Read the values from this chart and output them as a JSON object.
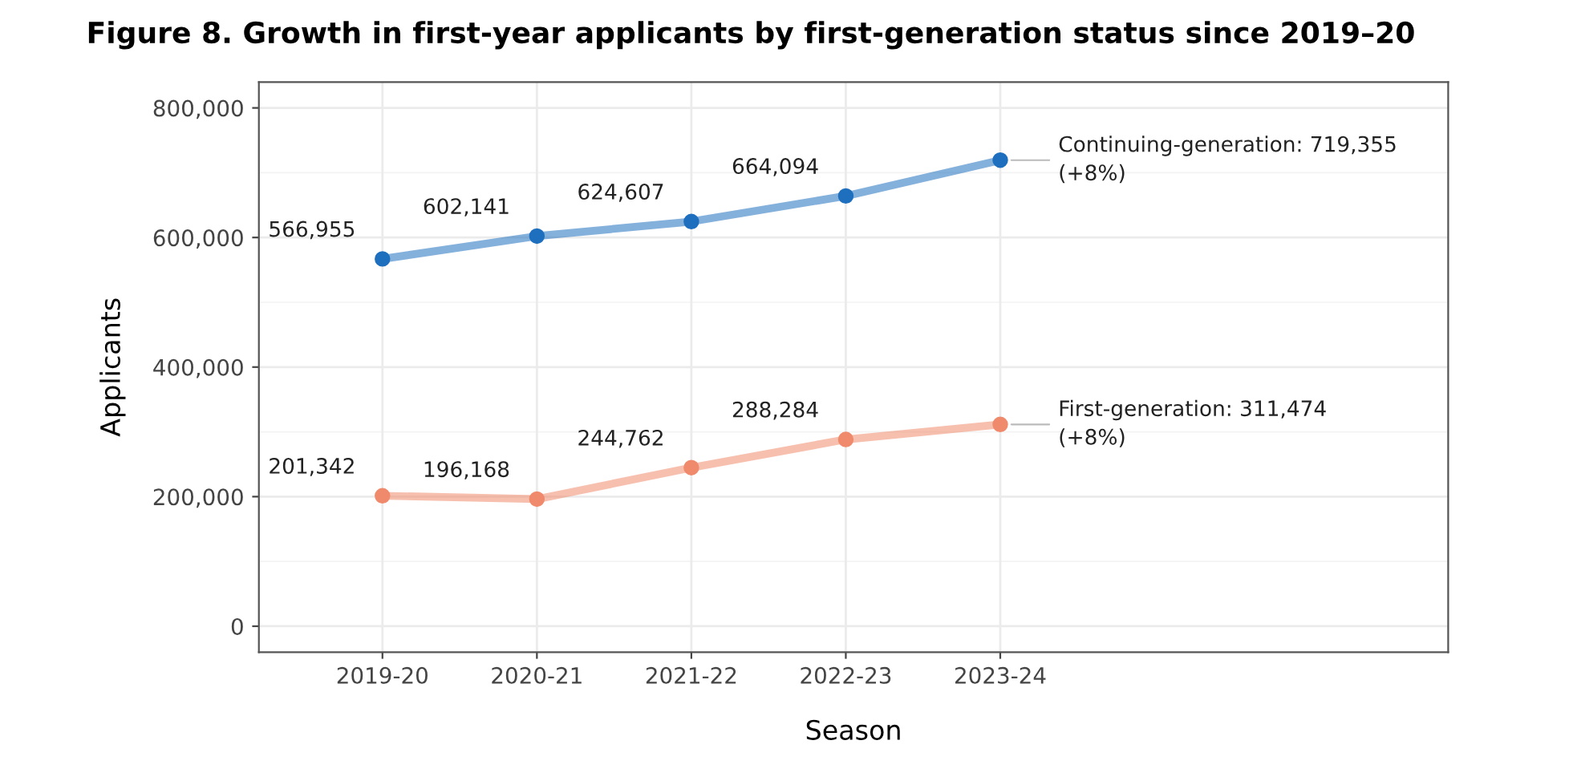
{
  "chart_data": {
    "type": "line",
    "title": "Figure 8. Growth in first-year applicants by first-generation status since 2019–20",
    "xlabel": "Season",
    "ylabel": "Applicants",
    "categories": [
      "2019-20",
      "2020-21",
      "2021-22",
      "2022-23",
      "2023-24"
    ],
    "series": [
      {
        "color": "#1f6fbf",
        "values": [
          566955,
          602141,
          624607,
          664094,
          719355
        ],
        "value_labels": [
          "566,955",
          "602,141",
          "624,607",
          "664,094",
          null
        ]
      },
      {
        "color": "#f08a6c",
        "values": [
          201342,
          196168,
          244762,
          288284,
          311474
        ],
        "value_labels": [
          "201,342",
          "196,168",
          "244,762",
          "288,284",
          null
        ]
      }
    ],
    "annotations": [
      {
        "text": "Continuing-generation: 719,355\n(+8%)",
        "x": "2023-24",
        "y": 719355
      },
      {
        "text": "First-generation: 311,474\n(+8%)",
        "x": "2023-24",
        "y": 311474
      }
    ],
    "ylim": [
      -40000,
      840000
    ],
    "yticks": [
      {
        "value": 0,
        "label": "0"
      },
      {
        "value": 200000,
        "label": "200,000"
      },
      {
        "value": 400000,
        "label": "400,000"
      },
      {
        "value": 600000,
        "label": "600,000"
      },
      {
        "value": 800000,
        "label": "800,000"
      }
    ],
    "grid": true,
    "marker": "circle",
    "line_style": "solid"
  }
}
